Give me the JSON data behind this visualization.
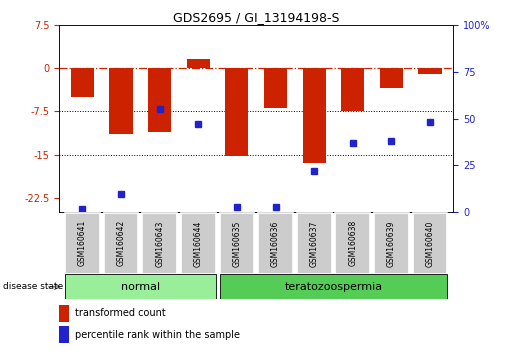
{
  "title": "GDS2695 / GI_13194198-S",
  "samples": [
    "GSM160641",
    "GSM160642",
    "GSM160643",
    "GSM160644",
    "GSM160635",
    "GSM160636",
    "GSM160637",
    "GSM160638",
    "GSM160639",
    "GSM160640"
  ],
  "groups": [
    "normal",
    "normal",
    "normal",
    "normal",
    "teratozoospermia",
    "teratozoospermia",
    "teratozoospermia",
    "teratozoospermia",
    "teratozoospermia",
    "teratozoospermia"
  ],
  "red_values": [
    -5.0,
    -11.5,
    -11.0,
    1.5,
    -15.2,
    -7.0,
    -16.5,
    -7.5,
    -3.5,
    -1.0
  ],
  "blue_values_pct": [
    2,
    10,
    55,
    47,
    3,
    3,
    22,
    37,
    38,
    48
  ],
  "ylim_left": [
    -25,
    7.5
  ],
  "ylim_right": [
    0,
    100
  ],
  "left_ticks": [
    7.5,
    0,
    -7.5,
    -15,
    -22.5
  ],
  "right_ticks": [
    100,
    75,
    50,
    25,
    0
  ],
  "left_tick_labels": [
    "7.5",
    "0",
    "-7.5",
    "-15",
    "-22.5"
  ],
  "right_tick_labels": [
    "100%",
    "75",
    "50",
    "25",
    "0"
  ],
  "red_color": "#cc2200",
  "blue_color": "#2222cc",
  "bar_width": 0.6,
  "normal_color": "#99ee99",
  "terato_color": "#55cc55",
  "normal_label": "normal",
  "terato_label": "teratozoospermia",
  "legend_red_label": "transformed count",
  "legend_blue_label": "percentile rank within the sample",
  "disease_state_label": "disease state"
}
